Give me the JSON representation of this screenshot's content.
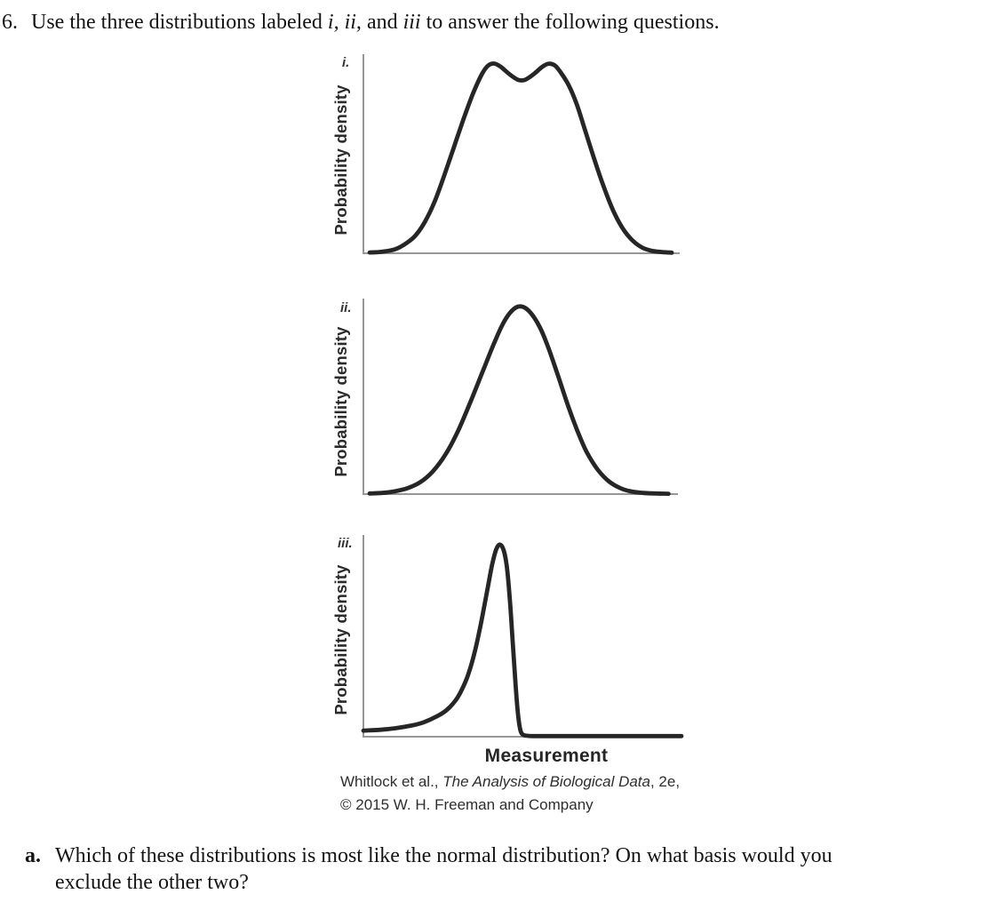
{
  "page": {
    "exercise_number": "6.",
    "title_segments": {
      "pre": "Use the three distributions labeled ",
      "italic1": "i, ii,",
      "mid": " and ",
      "italic2": "iii",
      "post": " to answer the following questions."
    },
    "question_a": {
      "label": "a.",
      "line1": "Which of these distributions is most like the normal distribution? On what basis would you",
      "line2": "exclude the other two?"
    }
  },
  "figure": {
    "xlabel": "Measurement",
    "attribution": {
      "line1_pre": "Whitlock et al., ",
      "line1_italic": "The Analysis of Biological Data",
      "line1_post": ", 2e,",
      "line2": "© 2015 W. H. Freeman and Company"
    },
    "colors": {
      "curve": "#262626",
      "axis": "#979797",
      "text": "#2e2e2e"
    }
  },
  "chart_data": [
    {
      "id": "i",
      "type": "line",
      "label": "i.",
      "ylabel": "Probability density",
      "xlabel": "Measurement",
      "shape": "bimodal density curve with two equal peaks and a shallow central dip",
      "x_range": [
        0,
        1
      ],
      "y_range": [
        0,
        1
      ],
      "points": [
        [
          0.02,
          0.004
        ],
        [
          0.06,
          0.008
        ],
        [
          0.1,
          0.02
        ],
        [
          0.135,
          0.05
        ],
        [
          0.165,
          0.09
        ],
        [
          0.195,
          0.16
        ],
        [
          0.225,
          0.26
        ],
        [
          0.255,
          0.39
        ],
        [
          0.285,
          0.53
        ],
        [
          0.315,
          0.67
        ],
        [
          0.345,
          0.8
        ],
        [
          0.375,
          0.905
        ],
        [
          0.395,
          0.948
        ],
        [
          0.415,
          0.957
        ],
        [
          0.435,
          0.94
        ],
        [
          0.46,
          0.906
        ],
        [
          0.485,
          0.878
        ],
        [
          0.5,
          0.872
        ],
        [
          0.515,
          0.878
        ],
        [
          0.54,
          0.906
        ],
        [
          0.565,
          0.94
        ],
        [
          0.585,
          0.956
        ],
        [
          0.605,
          0.948
        ],
        [
          0.625,
          0.91
        ],
        [
          0.65,
          0.845
        ],
        [
          0.675,
          0.75
        ],
        [
          0.7,
          0.625
        ],
        [
          0.73,
          0.475
        ],
        [
          0.76,
          0.335
        ],
        [
          0.79,
          0.215
        ],
        [
          0.82,
          0.125
        ],
        [
          0.85,
          0.066
        ],
        [
          0.88,
          0.03
        ],
        [
          0.91,
          0.013
        ],
        [
          0.945,
          0.006
        ],
        [
          0.975,
          0.003
        ]
      ]
    },
    {
      "id": "ii",
      "type": "line",
      "label": "ii.",
      "ylabel": "Probability density",
      "xlabel": "Measurement",
      "shape": "symmetric unimodal bell curve (normal distribution)",
      "x_range": [
        0,
        1
      ],
      "y_range": [
        0,
        1
      ],
      "points": [
        [
          0.02,
          0.003
        ],
        [
          0.06,
          0.006
        ],
        [
          0.1,
          0.014
        ],
        [
          0.14,
          0.03
        ],
        [
          0.18,
          0.06
        ],
        [
          0.22,
          0.115
        ],
        [
          0.26,
          0.2
        ],
        [
          0.3,
          0.32
        ],
        [
          0.34,
          0.47
        ],
        [
          0.38,
          0.63
        ],
        [
          0.41,
          0.75
        ],
        [
          0.44,
          0.86
        ],
        [
          0.465,
          0.925
        ],
        [
          0.49,
          0.958
        ],
        [
          0.515,
          0.952
        ],
        [
          0.54,
          0.91
        ],
        [
          0.565,
          0.84
        ],
        [
          0.59,
          0.74
        ],
        [
          0.62,
          0.6
        ],
        [
          0.65,
          0.455
        ],
        [
          0.68,
          0.325
        ],
        [
          0.71,
          0.215
        ],
        [
          0.745,
          0.125
        ],
        [
          0.78,
          0.066
        ],
        [
          0.815,
          0.032
        ],
        [
          0.85,
          0.014
        ],
        [
          0.89,
          0.006
        ],
        [
          0.93,
          0.003
        ],
        [
          0.97,
          0.002
        ]
      ]
    },
    {
      "id": "iii",
      "type": "line",
      "label": "iii.",
      "ylabel": "Probability density",
      "xlabel": "Measurement",
      "shape": "narrow sharp peak with long left tail (skewed), flat at zero to the right",
      "x_range": [
        0,
        1
      ],
      "y_range": [
        0,
        1
      ],
      "points": [
        [
          0.0,
          0.03
        ],
        [
          0.05,
          0.034
        ],
        [
          0.1,
          0.042
        ],
        [
          0.15,
          0.055
        ],
        [
          0.19,
          0.072
        ],
        [
          0.23,
          0.1
        ],
        [
          0.26,
          0.13
        ],
        [
          0.29,
          0.18
        ],
        [
          0.31,
          0.235
        ],
        [
          0.33,
          0.31
        ],
        [
          0.35,
          0.42
        ],
        [
          0.37,
          0.565
        ],
        [
          0.39,
          0.73
        ],
        [
          0.405,
          0.855
        ],
        [
          0.418,
          0.93
        ],
        [
          0.43,
          0.952
        ],
        [
          0.442,
          0.92
        ],
        [
          0.452,
          0.83
        ],
        [
          0.461,
          0.67
        ],
        [
          0.469,
          0.48
        ],
        [
          0.477,
          0.29
        ],
        [
          0.485,
          0.13
        ],
        [
          0.492,
          0.045
        ],
        [
          0.5,
          0.012
        ],
        [
          0.52,
          0.004
        ],
        [
          0.56,
          0.003
        ],
        [
          0.65,
          0.003
        ],
        [
          0.8,
          0.003
        ],
        [
          1.0,
          0.003
        ]
      ]
    }
  ]
}
